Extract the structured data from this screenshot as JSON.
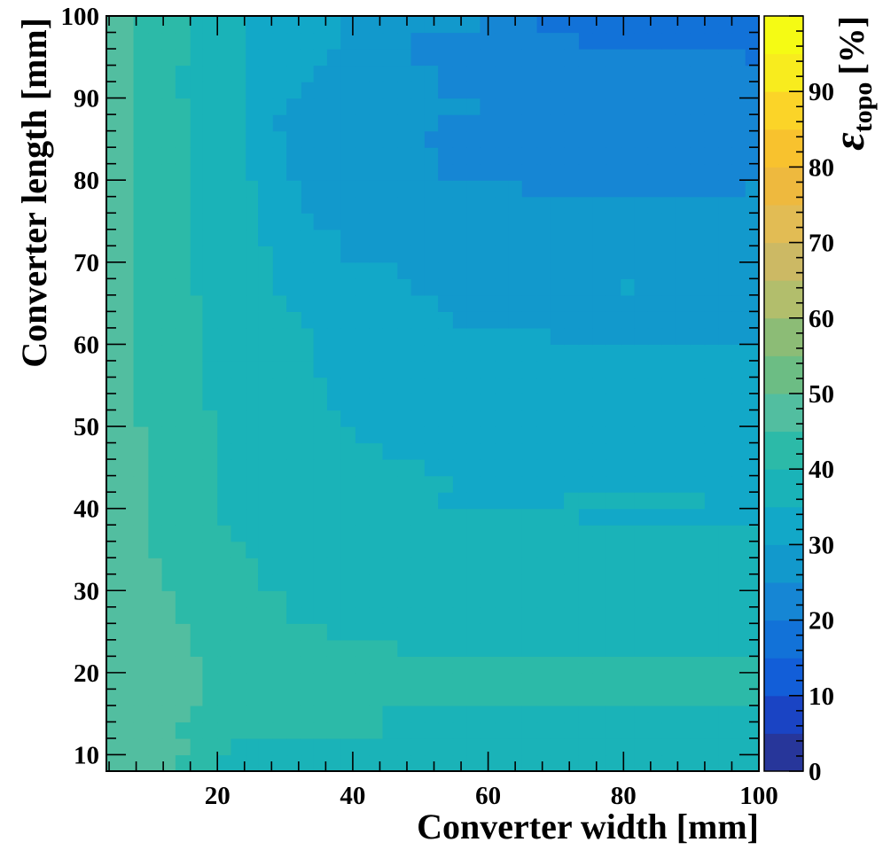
{
  "chart_data": {
    "type": "heatmap",
    "title": "",
    "xlabel": "Converter width [mm]",
    "ylabel": "Converter length [mm]",
    "zlabel": {
      "symbol": "ε",
      "subscript": "topo",
      "unit": "[%]"
    },
    "xlim": [
      3.6,
      100
    ],
    "ylim": [
      8,
      100
    ],
    "zlim": [
      0,
      100
    ],
    "x_ticks": [
      20,
      40,
      60,
      80,
      100
    ],
    "y_ticks": [
      10,
      20,
      30,
      40,
      50,
      60,
      70,
      80,
      90,
      100
    ],
    "z_ticks": [
      0,
      10,
      20,
      30,
      40,
      50,
      60,
      70,
      80,
      90
    ],
    "palette": [
      "#27369a",
      "#1a44c4",
      "#125ed8",
      "#1272d8",
      "#1686d4",
      "#1299cc",
      "#12a8c8",
      "#1ab3b8",
      "#2cbaa8",
      "#52bea0",
      "#6cbd84",
      "#8cbc76",
      "#b2be6c",
      "#ccb964",
      "#e2bc54",
      "#eeb93e",
      "#f8c22e",
      "#fbd428",
      "#f8ec1e",
      "#f5fb14"
    ],
    "x_edges": [
      3.6,
      7.6,
      9.8,
      11.8,
      13.8,
      16.0,
      17.8,
      20.0,
      22.0,
      24.2,
      26.0,
      28.2,
      30.2,
      32.4,
      34.2,
      36.2,
      38.2,
      40.4,
      42.4,
      44.4,
      46.6,
      48.6,
      50.6,
      52.6,
      54.8,
      56.8,
      58.8,
      61.0,
      63.0,
      65.0,
      67.2,
      69.2,
      71.2,
      73.4,
      75.4,
      77.4,
      79.6,
      81.6,
      83.6,
      85.6,
      87.8,
      89.8,
      92.0,
      94.0,
      96.0,
      98.0,
      100
    ],
    "y_edges": [
      8,
      10,
      12,
      14,
      16,
      18,
      20,
      22,
      24,
      26,
      28,
      30,
      32,
      34,
      36,
      38,
      40,
      42,
      44,
      46,
      48,
      50,
      52,
      54,
      56,
      58,
      60,
      62,
      64,
      66,
      68,
      70,
      72,
      74,
      76,
      78,
      80,
      82,
      84,
      86,
      88,
      90,
      92,
      94,
      96,
      98,
      100
    ],
    "z": [
      "jjjjiiihhhhhhhhhhhhhhhhhhhhhhhhhhhhhhhhhhhhhhh",
      "jjjjjiiihhhhhhhhhhhhhhhhhhhhhhhhhhhhhhhhhhhhhh",
      "jjjjiiiiiiiiiiiiiiihhhhhhhhhhhhhhhhhhhhhhhhhhh",
      "jjjjjiiiiiiiiiiiiiihhhhhhhhhhhhhhhhhhhhhhhhhhh",
      "jjjjjjiiiiiiiiiiiiiiiiiiiiiiiiiiiiiiiiiiiiiiii",
      "jjjjjjiiiiiiiiiiiiiiiiiiiiiiiiiiiiiiiiiiiiiiii",
      "jjjjjjiiiiiiiiiiiiiiiiiiiiiiiiiiiiiiiiiiiiiiii",
      "jjjjjiiiiiiiiiiiiiiihhhhhhhhhhhhhhhhhhhhhhhhhh",
      "jjjjjiiiiiiiiiihhhhhhhhhhhhhhhhhhhhhhhhhhhhhhh",
      "jjjjiiiiiiiihhhhhhhhhhhhhhhhhhhhhhhhhhhhhhhhhh",
      "jjjjiiiiiiiihhhhhhhhhhhhhhhhhhhhhhhhhhhhhhhhhh",
      "jjjiiiiiiihhhhhhhhhhhhhhhhhhhhhhhhhhhhhhhhhhhh",
      "jjjiiiiiiihhhhhhhhhhhhhhhhhhhhhhhhhhhhhhhhhhhh",
      "jjiiiiiiihhhhhhhhhhhhhhhhhhhhhhhhhhhhhhhhhhhhh",
      "jjiiiiiihhhhhhhhhhhhhhhhhhhhhhhhhhhhhhhhhhhhhh",
      "jjiiiiihhhhhhhhhhhhhhhhhhhhhhhhhhggggggggggggg",
      "jjiiiiihhhhhhhhhhhhhhhhggggggggghhhhhhhhhhgggg",
      "jjiiiiihhhhhhhhhhhhhhhhhggggggggggggggggggggggg",
      "jjiiiiihhhhhhhhhhhhhhhgggggggggggggggggggggggg",
      "jjiiiiihhhhhhhhhhhhgggggggggggggggggggggggggggg",
      "jjiiiiihhhhhhhhhhgggggggggggggggggggggggggggggg",
      "jiiiiiihhhhhhhhhgggggggggggggggggggggggggggggggg",
      "jiiiiihhhhhhhhhgggggggggggggggggggggggggggggggg",
      "jiiiiihhhhhhhhhgggggggggggggggggggggggggggggggg",
      "jiiiiihhhhhhhhggggggggggggggggggggggggggggggggg",
      "jiiiiihhhhhhhhggggggggggggggggggggggggggggggggg",
      "jiiiiihhhhhhhhgggggggggggggggggfffffffffffffff",
      "jiiiiihhhhhhhgggggggggggffffffffffffffffffffff",
      "jiiiiihhhhhhgggggggggggffffffffffffffffffffffff",
      "jiiiihhhhhhggggggggggfffffffffffffffgfffffffff",
      "jiiiihhhhhhgggggggggffffffffffffffffffffffffff",
      "jiiiihhhhhhgggggffffffffffffffffffffffffffffff",
      "jiiiihhhhhggggggfffffffffffffffffffffffffffff",
      "jiiiihhhhhggggffffffffffffffffffffffffffffffff",
      "jiiiihhhhhgggfffffffffffffffffffffffffffffffff",
      "jiiiihhhhhgggffffffffffffffffeeeeeeeeeeeeeeeef",
      "jiiiihhhhgggfffffffffffeeeeeeeeeeeeeeeeeeeeeeef",
      "jiiiihhhhgggfffffffffffeeeeeeeeeeeeeeeeeeeeeeee",
      "jiiiihhhhgggffffffffffeeeeeeeeeeeeeeeeeeeeeeeee",
      "jiiiihhhhggffffffffffffeeeeeeeeeeeeeeeeeeeeeeee",
      "jiiiihhhhgggffffffffffffffeeeeeeeeeeeeeeeeeeeee",
      "jiiihhhhhggggffffffffffeeeeeeeeeeeeeeeeeeeeeeed",
      "jiiihhhhhgggggfffffffffeeeeeeeeeeeeeeeeeeeeeeed",
      "jiiiihhhhggggggffffffeeeeeeeeeeeeeeeeeeeeeeeed",
      "jiiiihhhhgggggggfffffeeeeeeeeeeeedddddddddddddd",
      "jiiiihhhhgggggggffffffffffeeeeddddddddddddddddd"
    ]
  }
}
